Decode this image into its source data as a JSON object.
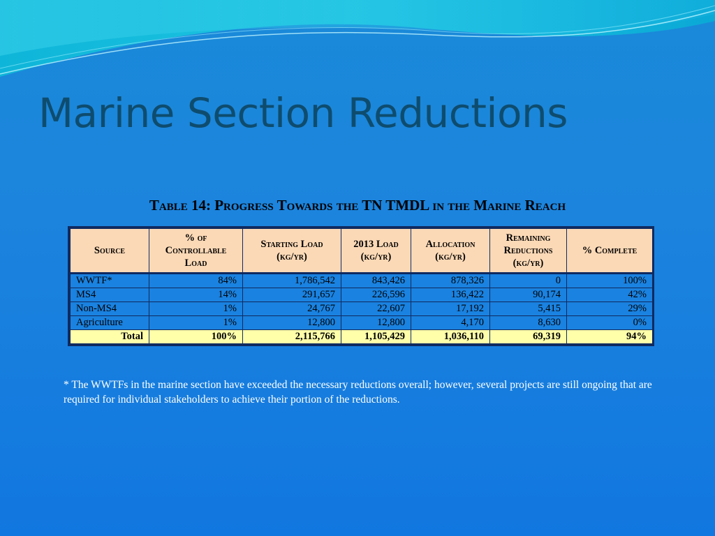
{
  "slide": {
    "title": "Marine Section Reductions",
    "table_caption": "Table 14: Progress Towards the TN TMDL in the Marine Reach",
    "footnote": "* The WWTFs in the marine section have exceeded the necessary reductions overall; however, several projects are still ongoing that are required for individual stakeholders to achieve their portion of the reductions."
  },
  "table": {
    "headers": [
      [
        "Source"
      ],
      [
        "% of",
        "Controllable",
        "Load"
      ],
      [
        "Starting Load",
        "(kg/yr)"
      ],
      [
        "2013 Load",
        "(kg/yr)"
      ],
      [
        "Allocation",
        "(kg/yr)"
      ],
      [
        "Remaining",
        "Reductions",
        "(kg/yr)"
      ],
      [
        "% Complete"
      ]
    ],
    "rows": [
      [
        "WWTF*",
        "84%",
        "1,786,542",
        "843,426",
        "878,326",
        "0",
        "100%"
      ],
      [
        "MS4",
        "14%",
        "291,657",
        "226,596",
        "136,422",
        "90,174",
        "42%"
      ],
      [
        "Non-MS4",
        "1%",
        "24,767",
        "22,607",
        "17,192",
        "5,415",
        "29%"
      ],
      [
        "Agriculture",
        "1%",
        "12,800",
        "12,800",
        "4,170",
        "8,630",
        "0%"
      ]
    ],
    "total": [
      "Total",
      "100%",
      "2,115,766",
      "1,105,429",
      "1,036,110",
      "69,319",
      "94%"
    ]
  },
  "colors": {
    "background": "#1a82e0",
    "title": "#0e4c6e",
    "header_fill": "#fcd9b6",
    "total_fill": "#ffffaa",
    "border": "#0f2a60"
  }
}
